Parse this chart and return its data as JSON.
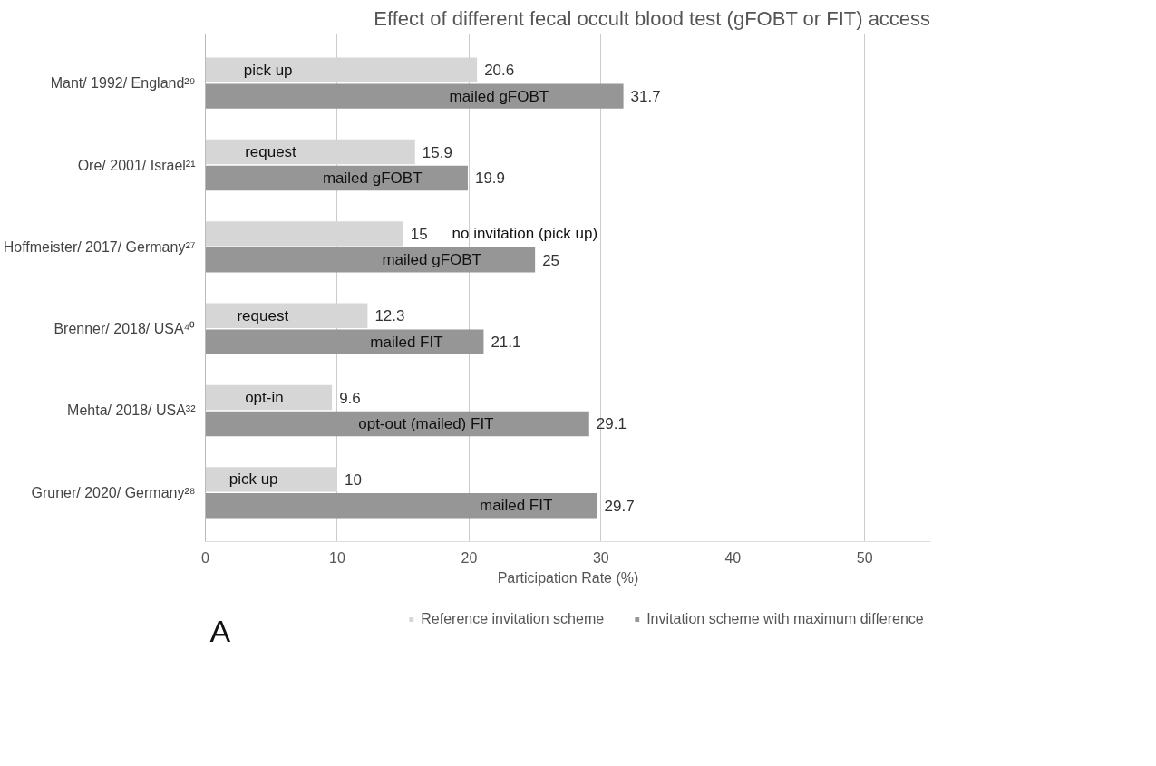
{
  "chart_data": {
    "type": "bar",
    "orientation": "horizontal",
    "title": "Effect of different fecal occult blood test (gFOBT or FIT) access",
    "xlabel": "Participation Rate (%)",
    "categories": [
      "Mant/ 1992/ England²⁹",
      "Ore/ 2001/ Israel²¹",
      "Hoffmeister/ 2017/ Germany²⁷",
      "Brenner/ 2018/ USA⁴⁰",
      "Mehta/ 2018/ USA³²",
      "Gruner/ 2020/ Germany²⁸"
    ],
    "series": [
      {
        "name": "Reference invitation scheme",
        "color": "#d6d6d6",
        "values": [
          20.6,
          15.9,
          15,
          12.3,
          9.6,
          10
        ]
      },
      {
        "name": "Invitation scheme with maximum difference",
        "color": "#969696",
        "values": [
          31.7,
          19.9,
          25,
          21.1,
          29.1,
          29.7
        ]
      }
    ],
    "xlim": [
      0,
      55
    ],
    "xticks": [
      0,
      10,
      20,
      30,
      40,
      50
    ],
    "grid": "x",
    "legend": "bottom",
    "data_labels": true,
    "annotations": [
      {
        "text": "pick up",
        "x": 2.9,
        "y": "Mant/ 1992/ England²⁹"
      },
      {
        "text": "mailed gFOBT",
        "x": 18.5,
        "y": "Mant/ 1992/ England²⁹"
      },
      {
        "text": "request",
        "x": 3.0,
        "y": "Ore/ 2001/ Israel²¹"
      },
      {
        "text": "mailed gFOBT",
        "x": 8.9,
        "y": "Ore/ 2001/ Israel²¹"
      },
      {
        "text": "no invitation (pick up)",
        "x": 18.7,
        "y": "Hoffmeister/ 2017/ Germany²⁷"
      },
      {
        "text": "mailed gFOBT",
        "x": 13.4,
        "y": "Hoffmeister/ 2017/ Germany²⁷"
      },
      {
        "text": "request",
        "x": 2.4,
        "y": "Brenner/ 2018/ USA⁴⁰"
      },
      {
        "text": "mailed FIT",
        "x": 12.5,
        "y": "Brenner/ 2018/ USA⁴⁰"
      },
      {
        "text": "opt-in",
        "x": 3.0,
        "y": "Mehta/ 2018/ USA³²"
      },
      {
        "text": "opt-out (mailed) FIT",
        "x": 11.6,
        "y": "Mehta/ 2018/ USA³²"
      },
      {
        "text": "pick up",
        "x": 1.8,
        "y": "Gruner/ 2020/ Germany²⁸"
      },
      {
        "text": "mailed FIT",
        "x": 20.8,
        "y": "Gruner/ 2020/ Germany²⁸"
      },
      "A"
    ]
  }
}
